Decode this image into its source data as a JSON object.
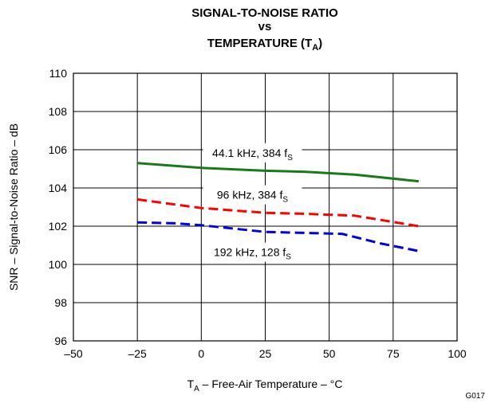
{
  "chart_data": {
    "type": "line",
    "title_lines": [
      {
        "text": "SIGNAL-TO-NOISE RATIO",
        "sub": ""
      },
      {
        "text": "vs",
        "sub": ""
      },
      {
        "text": "TEMPERATURE (T",
        "sub": "A",
        "suffix": ")"
      }
    ],
    "xlabel": {
      "pre": "T",
      "sub": "A",
      "post": " – Free-Air Temperature – °C"
    },
    "ylabel": "SNR – Signal-to-Noise Ratio – dB",
    "xlim": [
      -50,
      100
    ],
    "ylim": [
      96,
      110
    ],
    "x_ticks": [
      -50,
      -25,
      0,
      25,
      50,
      75,
      100
    ],
    "x_tick_labels": [
      "–50",
      "–25",
      "0",
      "25",
      "50",
      "75",
      "100"
    ],
    "y_ticks": [
      96,
      98,
      100,
      102,
      104,
      106,
      108,
      110
    ],
    "grid": true,
    "figure_id": "G017",
    "series": [
      {
        "label": {
          "pre": "44.1 kHz, 384 f",
          "sub": "S"
        },
        "label_pos": {
          "x": 20,
          "y": 105.8
        },
        "color": "#1a7a1a",
        "dash": "solid",
        "x": [
          -25,
          0,
          25,
          40,
          60,
          85
        ],
        "y": [
          105.3,
          105.05,
          104.9,
          104.85,
          104.7,
          104.35
        ]
      },
      {
        "label": {
          "pre": "96 kHz, 384 f",
          "sub": "S"
        },
        "label_pos": {
          "x": 20,
          "y": 103.6
        },
        "color": "#ff0000",
        "dash": "dashed",
        "x": [
          -25,
          0,
          25,
          40,
          60,
          85
        ],
        "y": [
          103.4,
          102.95,
          102.7,
          102.65,
          102.55,
          102.0
        ]
      },
      {
        "label": {
          "pre": "192 kHz, 128 f",
          "sub": "S"
        },
        "label_pos": {
          "x": 20,
          "y": 100.6
        },
        "color": "#0000e0",
        "dash": "dashed",
        "x": [
          -25,
          -10,
          0,
          25,
          40,
          55,
          70,
          85
        ],
        "y": [
          102.2,
          102.15,
          102.05,
          101.7,
          101.65,
          101.6,
          101.1,
          100.7
        ]
      }
    ]
  }
}
